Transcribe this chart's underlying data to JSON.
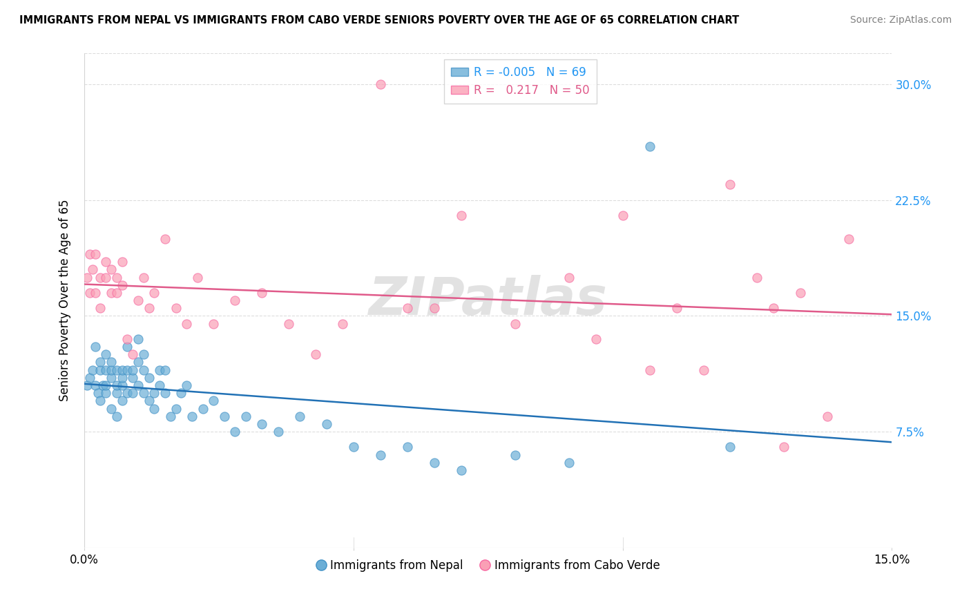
{
  "title": "IMMIGRANTS FROM NEPAL VS IMMIGRANTS FROM CABO VERDE SENIORS POVERTY OVER THE AGE OF 65 CORRELATION CHART",
  "source": "Source: ZipAtlas.com",
  "ylabel": "Seniors Poverty Over the Age of 65",
  "xlabel_nepal": "Immigrants from Nepal",
  "xlabel_caboverde": "Immigrants from Cabo Verde",
  "xlim": [
    0.0,
    0.15
  ],
  "ylim": [
    0.0,
    0.32
  ],
  "yticks": [
    0.075,
    0.15,
    0.225,
    0.3
  ],
  "ytick_labels": [
    "7.5%",
    "15.0%",
    "22.5%",
    "30.0%"
  ],
  "xticks": [
    0.0,
    0.05,
    0.1,
    0.15
  ],
  "xtick_labels": [
    "0.0%",
    "",
    "",
    "15.0%"
  ],
  "nepal_color": "#6baed6",
  "nepal_edge_color": "#4292c6",
  "caboverde_color": "#fa9fb5",
  "caboverde_edge_color": "#f768a1",
  "nepal_line_color": "#2171b5",
  "caboverde_line_color": "#e05a8a",
  "nepal_R": -0.005,
  "nepal_N": 69,
  "caboverde_R": 0.217,
  "caboverde_N": 50,
  "nepal_x": [
    0.0005,
    0.001,
    0.0015,
    0.002,
    0.002,
    0.0025,
    0.003,
    0.003,
    0.003,
    0.0035,
    0.004,
    0.004,
    0.004,
    0.004,
    0.005,
    0.005,
    0.005,
    0.005,
    0.006,
    0.006,
    0.006,
    0.006,
    0.007,
    0.007,
    0.007,
    0.007,
    0.008,
    0.008,
    0.008,
    0.009,
    0.009,
    0.009,
    0.01,
    0.01,
    0.01,
    0.011,
    0.011,
    0.011,
    0.012,
    0.012,
    0.013,
    0.013,
    0.014,
    0.014,
    0.015,
    0.015,
    0.016,
    0.017,
    0.018,
    0.019,
    0.02,
    0.022,
    0.024,
    0.026,
    0.028,
    0.03,
    0.033,
    0.036,
    0.04,
    0.045,
    0.05,
    0.055,
    0.06,
    0.065,
    0.07,
    0.08,
    0.09,
    0.105,
    0.12
  ],
  "nepal_y": [
    0.105,
    0.11,
    0.115,
    0.105,
    0.13,
    0.1,
    0.095,
    0.115,
    0.12,
    0.105,
    0.1,
    0.115,
    0.125,
    0.105,
    0.09,
    0.11,
    0.115,
    0.12,
    0.1,
    0.105,
    0.115,
    0.085,
    0.095,
    0.105,
    0.11,
    0.115,
    0.1,
    0.115,
    0.13,
    0.1,
    0.11,
    0.115,
    0.105,
    0.12,
    0.135,
    0.1,
    0.115,
    0.125,
    0.095,
    0.11,
    0.09,
    0.1,
    0.105,
    0.115,
    0.1,
    0.115,
    0.085,
    0.09,
    0.1,
    0.105,
    0.085,
    0.09,
    0.095,
    0.085,
    0.075,
    0.085,
    0.08,
    0.075,
    0.085,
    0.08,
    0.065,
    0.06,
    0.065,
    0.055,
    0.05,
    0.06,
    0.055,
    0.26,
    0.065
  ],
  "caboverde_x": [
    0.0005,
    0.001,
    0.001,
    0.0015,
    0.002,
    0.002,
    0.003,
    0.003,
    0.004,
    0.004,
    0.005,
    0.005,
    0.006,
    0.006,
    0.007,
    0.007,
    0.008,
    0.009,
    0.01,
    0.011,
    0.012,
    0.013,
    0.015,
    0.017,
    0.019,
    0.021,
    0.024,
    0.028,
    0.033,
    0.038,
    0.043,
    0.048,
    0.055,
    0.06,
    0.065,
    0.07,
    0.08,
    0.09,
    0.095,
    0.1,
    0.105,
    0.11,
    0.115,
    0.12,
    0.125,
    0.128,
    0.13,
    0.133,
    0.138,
    0.142
  ],
  "caboverde_y": [
    0.175,
    0.19,
    0.165,
    0.18,
    0.19,
    0.165,
    0.175,
    0.155,
    0.185,
    0.175,
    0.165,
    0.18,
    0.175,
    0.165,
    0.185,
    0.17,
    0.135,
    0.125,
    0.16,
    0.175,
    0.155,
    0.165,
    0.2,
    0.155,
    0.145,
    0.175,
    0.145,
    0.16,
    0.165,
    0.145,
    0.125,
    0.145,
    0.3,
    0.155,
    0.155,
    0.215,
    0.145,
    0.175,
    0.135,
    0.215,
    0.115,
    0.155,
    0.115,
    0.235,
    0.175,
    0.155,
    0.065,
    0.165,
    0.085,
    0.2
  ],
  "watermark": "ZIPatlas",
  "background_color": "#ffffff",
  "grid_color": "#dddddd"
}
